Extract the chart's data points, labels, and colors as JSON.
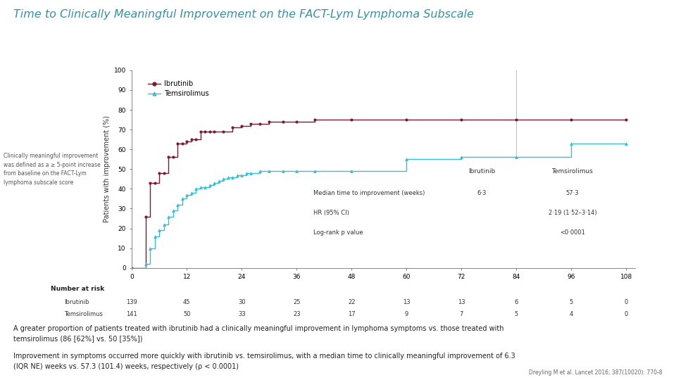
{
  "title": "Time to Clinically Meaningful Improvement on the FACT-Lym Lymphoma Subscale",
  "title_color": "#3A8FA0",
  "ylabel": "Patients with improvement (%)",
  "xlabel_ticks": [
    0,
    12,
    24,
    36,
    48,
    60,
    72,
    84,
    96,
    108
  ],
  "ylim": [
    0,
    100
  ],
  "xlim": [
    0,
    110
  ],
  "ibrutinib_color": "#7B1A2E",
  "temsirolimus_color": "#3BBCD4",
  "ibrutinib_x": [
    0,
    3,
    4,
    5,
    6,
    7,
    8,
    9,
    10,
    11,
    12,
    13,
    14,
    15,
    16,
    17,
    18,
    20,
    22,
    24,
    26,
    28,
    30,
    33,
    36,
    40,
    48,
    60,
    72,
    84,
    96,
    108
  ],
  "ibrutinib_y": [
    0,
    26,
    43,
    43,
    48,
    48,
    56,
    56,
    63,
    63,
    64,
    65,
    65,
    69,
    69,
    69,
    69,
    69,
    71,
    72,
    73,
    73,
    74,
    74,
    74,
    75,
    75,
    75,
    75,
    75,
    75,
    75
  ],
  "temsirolimus_x": [
    0,
    3,
    4,
    5,
    6,
    7,
    8,
    9,
    10,
    11,
    12,
    13,
    14,
    15,
    16,
    17,
    18,
    19,
    20,
    21,
    22,
    23,
    24,
    25,
    26,
    28,
    30,
    33,
    36,
    40,
    48,
    60,
    72,
    84,
    96,
    108
  ],
  "temsirolimus_y": [
    0,
    2,
    10,
    16,
    19,
    22,
    26,
    29,
    32,
    35,
    37,
    38,
    40,
    41,
    41,
    42,
    43,
    44,
    45,
    46,
    46,
    47,
    47,
    48,
    48,
    49,
    49,
    49,
    49,
    49,
    49,
    55,
    56,
    56,
    63,
    63
  ],
  "number_at_risk_ibrutinib": [
    139,
    45,
    30,
    25,
    22,
    13,
    13,
    6,
    5,
    0
  ],
  "number_at_risk_temsirolimus": [
    141,
    50,
    33,
    23,
    17,
    9,
    7,
    5,
    4,
    0
  ],
  "number_at_risk_x": [
    0,
    12,
    24,
    36,
    48,
    60,
    72,
    84,
    96,
    108
  ],
  "side_note": "Clinically meaningful improvement\nwas defined as a ≥ 5-point increase\nfrom baseline on the FACT-Lym\nlymphoma subscale score",
  "legend_ibrutinib": "Ibrutinib",
  "legend_temsirolimus": "Temsirolimus",
  "stats_label1": "Median time to improvement (weeks)",
  "stats_val1_ibr": "6·3",
  "stats_val1_tem": "57·3",
  "stats_col_ibr": "Ibrutinib",
  "stats_col_tem": "Temsirolimus",
  "stats_label2": "HR (95% CI)",
  "stats_val2": "2·19 (1·52–3·14)",
  "stats_label3": "Log-rank p value",
  "stats_val3": "<0·0001",
  "footer_text1": "A greater proportion of patients treated with ibrutinib had a clinically meaningful improvement in lymphoma symptoms vs. those treated with\ntemsirolimus (86 [62%] vs. 50 [35%])",
  "footer_text2": "Improvement in symptoms occurred more quickly with ibrutinib vs. temsirolimus, with a median time to clinically meaningful improvement of 6.3\n(IQR NE) weeks vs. 57.3 (101.4) weeks, respectively (ρ < 0.0001)",
  "reference": "Dreyling M et al. Lancet 2016; 387(10020): 770-8",
  "bg_color": "#FFFFFF"
}
